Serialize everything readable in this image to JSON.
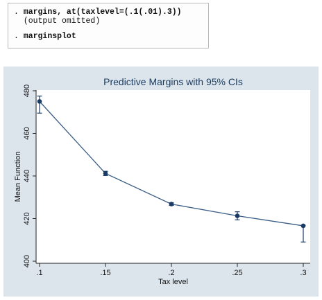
{
  "console": {
    "lines": [
      {
        "prompt": ". ",
        "text": "margins, at(taxlevel=(.1(.01).3))",
        "style": "cmd"
      },
      {
        "prompt": "  ",
        "text": "(output omitted)",
        "style": "note"
      },
      {
        "prompt": ". ",
        "text": "marginsplot",
        "style": "cmd"
      }
    ]
  },
  "colors": {
    "outer_background": "#dde5ec",
    "plot_background": "#ffffff",
    "series": "#3a5d86",
    "marker": "#1a3a66",
    "title": "#1a3a5c"
  },
  "chart_data": {
    "type": "line",
    "title": "Predictive Margins with 95% CIs",
    "xlabel": "Tax level",
    "ylabel": "Mean Function",
    "xlim": [
      0.1,
      0.3
    ],
    "ylim": [
      400,
      480
    ],
    "xticks": [
      0.1,
      0.15,
      0.2,
      0.25,
      0.3
    ],
    "xtick_labels": [
      ".1",
      ".15",
      ".2",
      ".25",
      ".3"
    ],
    "yticks": [
      400,
      420,
      440,
      460,
      480
    ],
    "ytick_labels": [
      "400",
      "420",
      "440",
      "460",
      "480"
    ],
    "grid": false,
    "legend": "none",
    "series": [
      {
        "x": [
          0.1,
          0.15,
          0.2,
          0.25,
          0.3
        ],
        "y": [
          475,
          441.2,
          426.8,
          421.3,
          416.6
        ],
        "ci_low": [
          469.5,
          440.2,
          426.2,
          419.4,
          409.0
        ],
        "ci_high": [
          477.5,
          442.2,
          427.4,
          423.2,
          416.8
        ]
      }
    ]
  }
}
